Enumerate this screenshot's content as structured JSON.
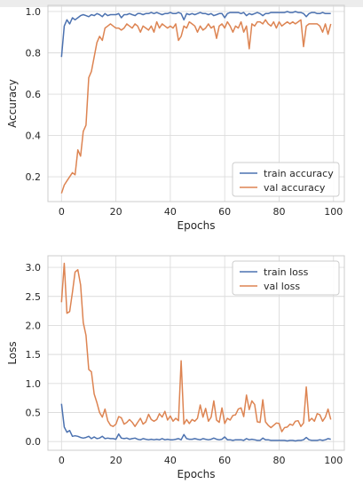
{
  "colors": {
    "train": "#4c72b0",
    "val": "#dd8452",
    "grid": "#dcdcdc",
    "frame": "#cccccc",
    "text": "#262626"
  },
  "chart_data": [
    {
      "type": "line",
      "xlabel": "Epochs",
      "ylabel": "Accuracy",
      "xlim": [
        -5,
        104
      ],
      "ylim": [
        0.08,
        1.03
      ],
      "xticks": [
        0,
        20,
        40,
        60,
        80,
        100
      ],
      "xtick_labels": [
        "0",
        "20",
        "40",
        "60",
        "80",
        "100"
      ],
      "yticks": [
        0.2,
        0.4,
        0.6,
        0.8,
        1.0
      ],
      "ytick_labels": [
        "0.2",
        "0.4",
        "0.6",
        "0.8",
        "1.0"
      ],
      "grid": true,
      "legend_position": "lower-right",
      "series": [
        {
          "name": "train accuracy",
          "color_key": "train",
          "x": [
            0,
            1,
            2,
            3,
            4,
            5,
            6,
            7,
            8,
            9,
            10,
            11,
            12,
            13,
            14,
            15,
            16,
            17,
            18,
            19,
            20,
            21,
            22,
            23,
            24,
            25,
            26,
            27,
            28,
            29,
            30,
            31,
            32,
            33,
            34,
            35,
            36,
            37,
            38,
            39,
            40,
            41,
            42,
            43,
            44,
            45,
            46,
            47,
            48,
            49,
            50,
            51,
            52,
            53,
            54,
            55,
            56,
            57,
            58,
            59,
            60,
            61,
            62,
            63,
            64,
            65,
            66,
            67,
            68,
            69,
            70,
            71,
            72,
            73,
            74,
            75,
            76,
            77,
            78,
            79,
            80,
            81,
            82,
            83,
            84,
            85,
            86,
            87,
            88,
            89,
            90,
            91,
            92,
            93,
            94,
            95,
            96,
            97,
            98,
            99
          ],
          "values": [
            0.78,
            0.93,
            0.96,
            0.94,
            0.97,
            0.96,
            0.97,
            0.98,
            0.985,
            0.98,
            0.975,
            0.985,
            0.98,
            0.99,
            0.985,
            0.975,
            0.99,
            0.98,
            0.985,
            0.985,
            0.985,
            0.99,
            0.97,
            0.985,
            0.985,
            0.99,
            0.985,
            0.98,
            0.99,
            0.99,
            0.985,
            0.99,
            0.99,
            0.995,
            0.99,
            0.995,
            0.99,
            0.985,
            0.99,
            0.99,
            0.995,
            0.99,
            0.99,
            0.995,
            0.99,
            0.96,
            0.99,
            0.985,
            0.99,
            0.985,
            0.99,
            0.995,
            0.99,
            0.99,
            0.985,
            0.99,
            0.98,
            0.985,
            0.99,
            0.99,
            0.97,
            0.99,
            0.995,
            0.995,
            0.995,
            0.995,
            0.99,
            0.995,
            0.98,
            0.99,
            0.985,
            0.99,
            0.995,
            0.99,
            0.98,
            0.99,
            0.99,
            0.995,
            0.995,
            0.995,
            0.995,
            0.995,
            0.995,
            1.0,
            0.995,
            0.995,
            1.0,
            0.995,
            0.995,
            0.99,
            0.975,
            0.99,
            0.995,
            0.995,
            0.99,
            0.99,
            0.995,
            0.99,
            0.99,
            0.99
          ]
        },
        {
          "name": "val accuracy",
          "color_key": "val",
          "x": [
            0,
            1,
            2,
            3,
            4,
            5,
            6,
            7,
            8,
            9,
            10,
            11,
            12,
            13,
            14,
            15,
            16,
            17,
            18,
            19,
            20,
            21,
            22,
            23,
            24,
            25,
            26,
            27,
            28,
            29,
            30,
            31,
            32,
            33,
            34,
            35,
            36,
            37,
            38,
            39,
            40,
            41,
            42,
            43,
            44,
            45,
            46,
            47,
            48,
            49,
            50,
            51,
            52,
            53,
            54,
            55,
            56,
            57,
            58,
            59,
            60,
            61,
            62,
            63,
            64,
            65,
            66,
            67,
            68,
            69,
            70,
            71,
            72,
            73,
            74,
            75,
            76,
            77,
            78,
            79,
            80,
            81,
            82,
            83,
            84,
            85,
            86,
            87,
            88,
            89,
            90,
            91,
            92,
            93,
            94,
            95,
            96,
            97,
            98,
            99
          ],
          "values": [
            0.12,
            0.16,
            0.18,
            0.2,
            0.22,
            0.21,
            0.33,
            0.3,
            0.42,
            0.45,
            0.68,
            0.71,
            0.78,
            0.85,
            0.88,
            0.86,
            0.92,
            0.93,
            0.94,
            0.93,
            0.92,
            0.92,
            0.91,
            0.92,
            0.94,
            0.93,
            0.92,
            0.94,
            0.93,
            0.9,
            0.93,
            0.92,
            0.91,
            0.93,
            0.9,
            0.95,
            0.92,
            0.94,
            0.93,
            0.92,
            0.93,
            0.92,
            0.94,
            0.86,
            0.88,
            0.93,
            0.92,
            0.95,
            0.94,
            0.93,
            0.9,
            0.93,
            0.91,
            0.92,
            0.94,
            0.92,
            0.93,
            0.87,
            0.93,
            0.94,
            0.92,
            0.95,
            0.93,
            0.9,
            0.93,
            0.92,
            0.95,
            0.9,
            0.93,
            0.82,
            0.94,
            0.93,
            0.95,
            0.95,
            0.94,
            0.96,
            0.94,
            0.93,
            0.95,
            0.92,
            0.95,
            0.93,
            0.94,
            0.95,
            0.94,
            0.95,
            0.94,
            0.95,
            0.96,
            0.83,
            0.93,
            0.94,
            0.94,
            0.94,
            0.94,
            0.93,
            0.9,
            0.94,
            0.89,
            0.94
          ]
        }
      ]
    },
    {
      "type": "line",
      "xlabel": "Epochs",
      "ylabel": "Loss",
      "xlim": [
        -5,
        104
      ],
      "ylim": [
        -0.15,
        3.2
      ],
      "xticks": [
        0,
        20,
        40,
        60,
        80,
        100
      ],
      "xtick_labels": [
        "0",
        "20",
        "40",
        "60",
        "80",
        "100"
      ],
      "yticks": [
        0.0,
        0.5,
        1.0,
        1.5,
        2.0,
        2.5,
        3.0
      ],
      "ytick_labels": [
        "0.0",
        "0.5",
        "1.0",
        "1.5",
        "2.0",
        "2.5",
        "3.0"
      ],
      "grid": true,
      "legend_position": "upper-right",
      "series": [
        {
          "name": "train loss",
          "color_key": "train",
          "x": [
            0,
            1,
            2,
            3,
            4,
            5,
            6,
            7,
            8,
            9,
            10,
            11,
            12,
            13,
            14,
            15,
            16,
            17,
            18,
            19,
            20,
            21,
            22,
            23,
            24,
            25,
            26,
            27,
            28,
            29,
            30,
            31,
            32,
            33,
            34,
            35,
            36,
            37,
            38,
            39,
            40,
            41,
            42,
            43,
            44,
            45,
            46,
            47,
            48,
            49,
            50,
            51,
            52,
            53,
            54,
            55,
            56,
            57,
            58,
            59,
            60,
            61,
            62,
            63,
            64,
            65,
            66,
            67,
            68,
            69,
            70,
            71,
            72,
            73,
            74,
            75,
            76,
            77,
            78,
            79,
            80,
            81,
            82,
            83,
            84,
            85,
            86,
            87,
            88,
            89,
            90,
            91,
            92,
            93,
            94,
            95,
            96,
            97,
            98,
            99
          ],
          "values": [
            0.65,
            0.25,
            0.16,
            0.19,
            0.09,
            0.1,
            0.09,
            0.07,
            0.06,
            0.07,
            0.09,
            0.05,
            0.08,
            0.05,
            0.06,
            0.09,
            0.05,
            0.06,
            0.05,
            0.05,
            0.04,
            0.13,
            0.06,
            0.05,
            0.06,
            0.04,
            0.05,
            0.06,
            0.04,
            0.03,
            0.05,
            0.04,
            0.03,
            0.04,
            0.03,
            0.04,
            0.03,
            0.05,
            0.03,
            0.04,
            0.03,
            0.03,
            0.04,
            0.05,
            0.03,
            0.12,
            0.05,
            0.04,
            0.04,
            0.05,
            0.04,
            0.03,
            0.05,
            0.04,
            0.03,
            0.04,
            0.06,
            0.04,
            0.03,
            0.04,
            0.08,
            0.03,
            0.03,
            0.02,
            0.03,
            0.03,
            0.03,
            0.02,
            0.05,
            0.03,
            0.04,
            0.03,
            0.02,
            0.02,
            0.06,
            0.03,
            0.03,
            0.02,
            0.02,
            0.02,
            0.02,
            0.02,
            0.02,
            0.01,
            0.02,
            0.02,
            0.01,
            0.02,
            0.02,
            0.03,
            0.07,
            0.03,
            0.02,
            0.02,
            0.02,
            0.03,
            0.02,
            0.03,
            0.05,
            0.04
          ]
        },
        {
          "name": "val loss",
          "color_key": "val",
          "x": [
            0,
            1,
            2,
            3,
            4,
            5,
            6,
            7,
            8,
            9,
            10,
            11,
            12,
            13,
            14,
            15,
            16,
            17,
            18,
            19,
            20,
            21,
            22,
            23,
            24,
            25,
            26,
            27,
            28,
            29,
            30,
            31,
            32,
            33,
            34,
            35,
            36,
            37,
            38,
            39,
            40,
            41,
            42,
            43,
            44,
            45,
            46,
            47,
            48,
            49,
            50,
            51,
            52,
            53,
            54,
            55,
            56,
            57,
            58,
            59,
            60,
            61,
            62,
            63,
            64,
            65,
            66,
            67,
            68,
            69,
            70,
            71,
            72,
            73,
            74,
            75,
            76,
            77,
            78,
            79,
            80,
            81,
            82,
            83,
            84,
            85,
            86,
            87,
            88,
            89,
            90,
            91,
            92,
            93,
            94,
            95,
            96,
            97,
            98,
            99
          ],
          "values": [
            2.4,
            3.07,
            2.21,
            2.24,
            2.57,
            2.92,
            2.96,
            2.7,
            2.05,
            1.83,
            1.24,
            1.2,
            0.82,
            0.67,
            0.5,
            0.42,
            0.56,
            0.36,
            0.28,
            0.26,
            0.3,
            0.43,
            0.41,
            0.3,
            0.33,
            0.38,
            0.33,
            0.26,
            0.33,
            0.4,
            0.3,
            0.34,
            0.47,
            0.38,
            0.35,
            0.38,
            0.48,
            0.42,
            0.52,
            0.37,
            0.44,
            0.35,
            0.4,
            0.36,
            1.39,
            0.3,
            0.38,
            0.31,
            0.38,
            0.35,
            0.4,
            0.63,
            0.42,
            0.57,
            0.35,
            0.42,
            0.7,
            0.37,
            0.33,
            0.58,
            0.31,
            0.4,
            0.37,
            0.45,
            0.46,
            0.56,
            0.58,
            0.43,
            0.8,
            0.55,
            0.7,
            0.64,
            0.34,
            0.33,
            0.72,
            0.34,
            0.28,
            0.24,
            0.28,
            0.32,
            0.31,
            0.17,
            0.24,
            0.25,
            0.3,
            0.28,
            0.35,
            0.36,
            0.26,
            0.32,
            0.94,
            0.35,
            0.4,
            0.35,
            0.48,
            0.46,
            0.35,
            0.42,
            0.56,
            0.38
          ]
        }
      ]
    }
  ]
}
